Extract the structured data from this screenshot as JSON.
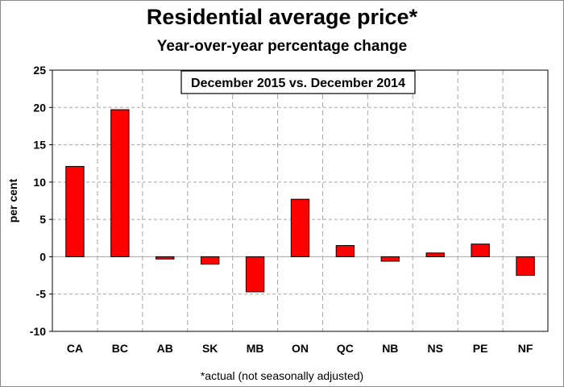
{
  "title": "Residential average price*",
  "subtitle": "Year-over-year percentage change",
  "footnote": "*actual (not seasonally adjusted)",
  "chart_data": {
    "type": "bar",
    "categories": [
      "CA",
      "BC",
      "AB",
      "SK",
      "MB",
      "ON",
      "QC",
      "NB",
      "NS",
      "PE",
      "NF"
    ],
    "values": [
      12.1,
      19.7,
      -0.3,
      -1.0,
      -4.7,
      7.7,
      1.5,
      -0.6,
      0.5,
      1.7,
      -2.5
    ],
    "ylabel": "per cent",
    "xlabel": "",
    "ylim": [
      -10,
      25
    ],
    "yticks": [
      25,
      20,
      15,
      10,
      5,
      0,
      -5,
      -10
    ],
    "annotation": "December 2015 vs. December 2014",
    "bar_color": "#ff0000",
    "grid": true,
    "legend": "none"
  }
}
